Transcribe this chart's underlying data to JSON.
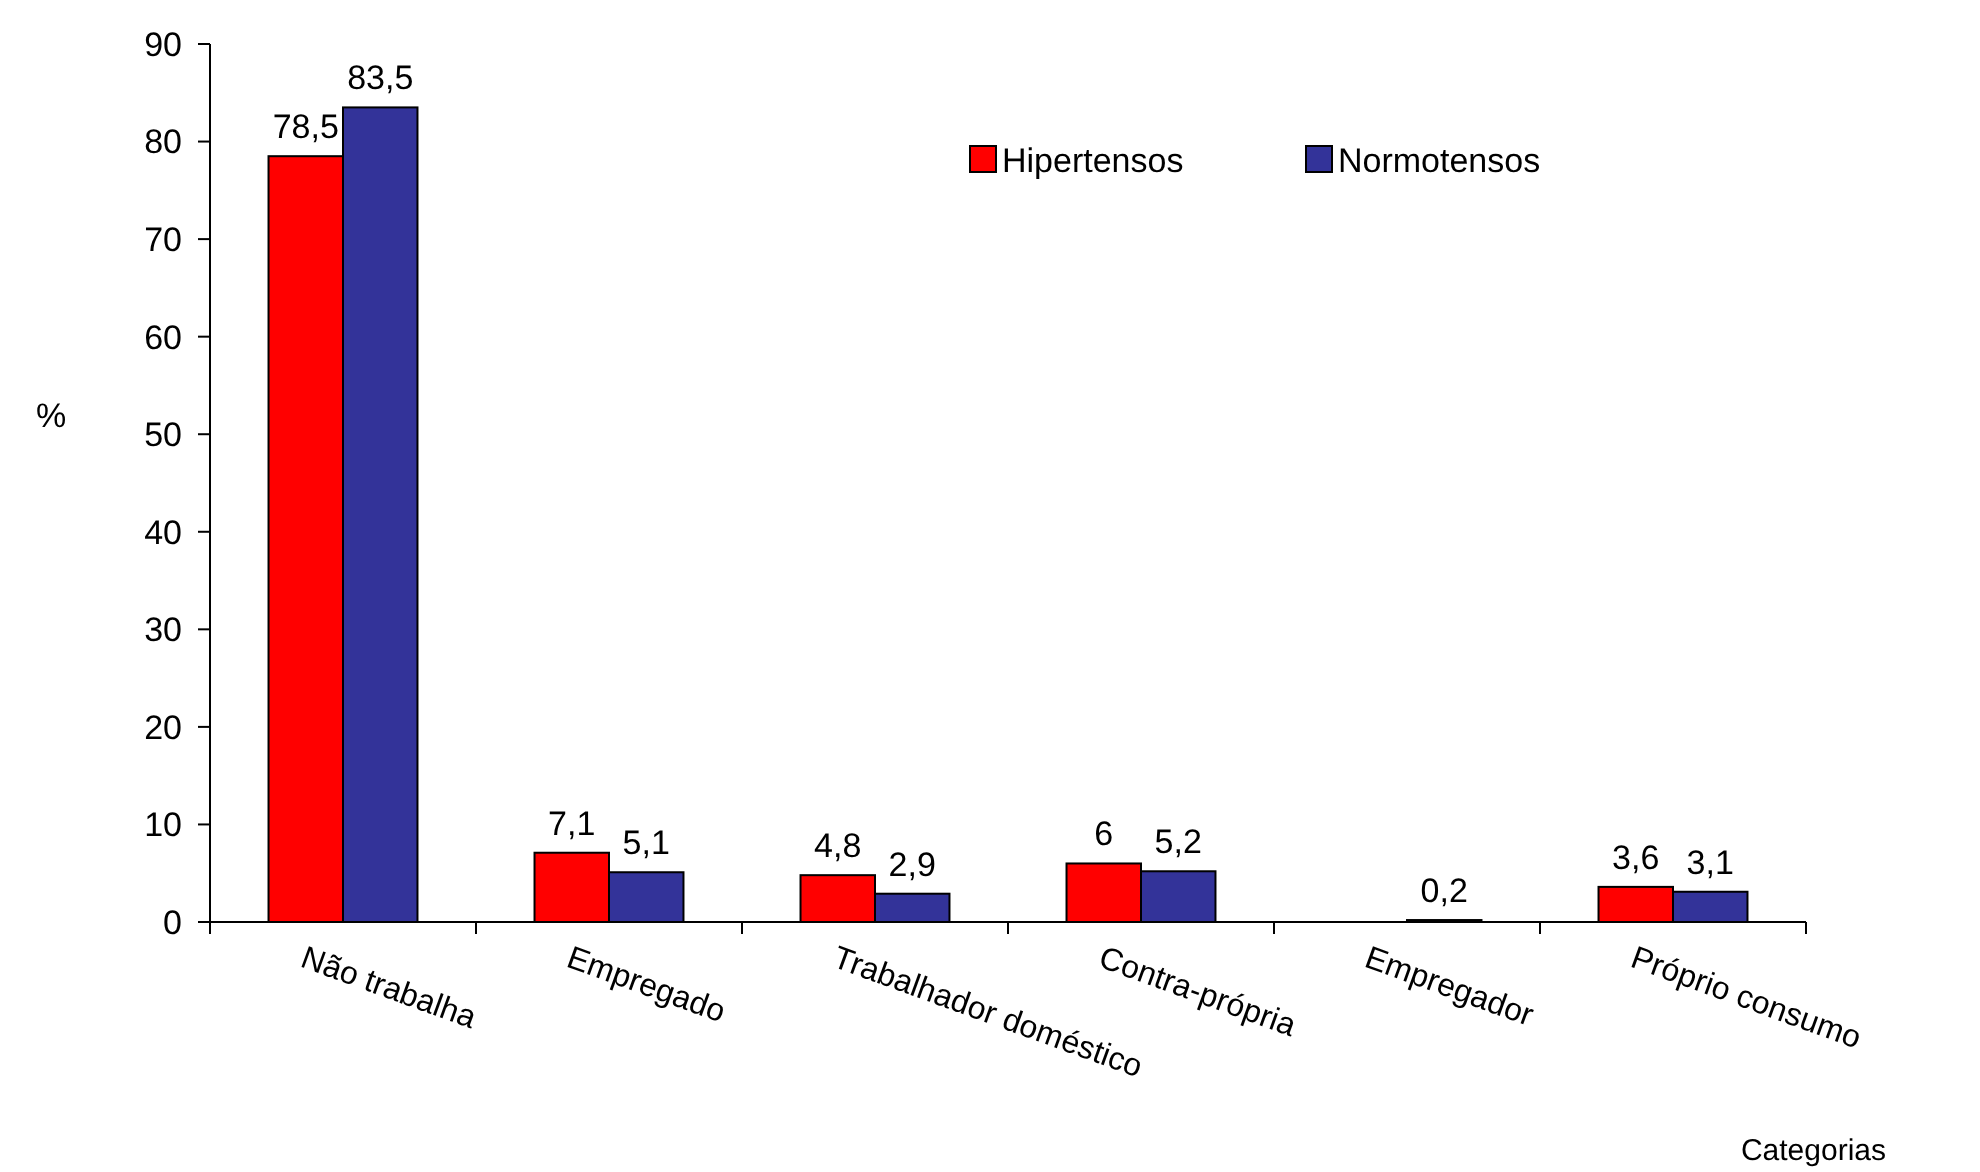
{
  "chart_data": {
    "type": "bar",
    "xlabel": "Categorias",
    "ylabel": "%",
    "categories": [
      "Não trabalha",
      "Empregado",
      "Trabalhador doméstico",
      "Contra-própria",
      "Empregador",
      "Próprio consumo"
    ],
    "series": [
      {
        "name": "Hipertensos",
        "color": "#ff0000",
        "values": [
          78.5,
          7.1,
          4.8,
          6,
          null,
          3.6
        ],
        "value_labels": [
          "78,5",
          "7,1",
          "4,8",
          "6",
          null,
          "3,6"
        ]
      },
      {
        "name": "Normotensos",
        "color": "#333399",
        "values": [
          83.5,
          5.1,
          2.9,
          5.2,
          0.2,
          3.1
        ],
        "value_labels": [
          "83,5",
          "5,1",
          "2,9",
          "5,2",
          "0,2",
          "3,1"
        ]
      }
    ],
    "ylim": [
      0,
      90
    ],
    "yticks": [
      0,
      10,
      20,
      30,
      40,
      50,
      60,
      70,
      80,
      90
    ],
    "grid": false,
    "legend": "top right"
  }
}
